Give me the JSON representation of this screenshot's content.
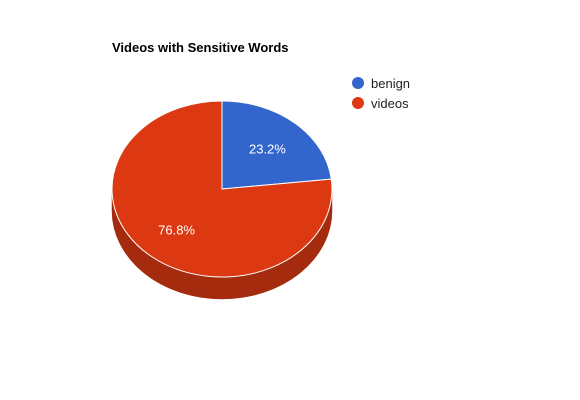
{
  "chart_data": {
    "type": "pie",
    "title": "Videos with Sensitive Words",
    "three_d": true,
    "legend_position": "right",
    "series": [
      {
        "name": "benign",
        "value": 23.2,
        "label": "23.2%",
        "color": "#3366cc",
        "side_color": "#264d99"
      },
      {
        "name": "videos",
        "value": 76.8,
        "label": "76.8%",
        "color": "#dc3912",
        "side_color": "#a52b0e"
      }
    ]
  }
}
